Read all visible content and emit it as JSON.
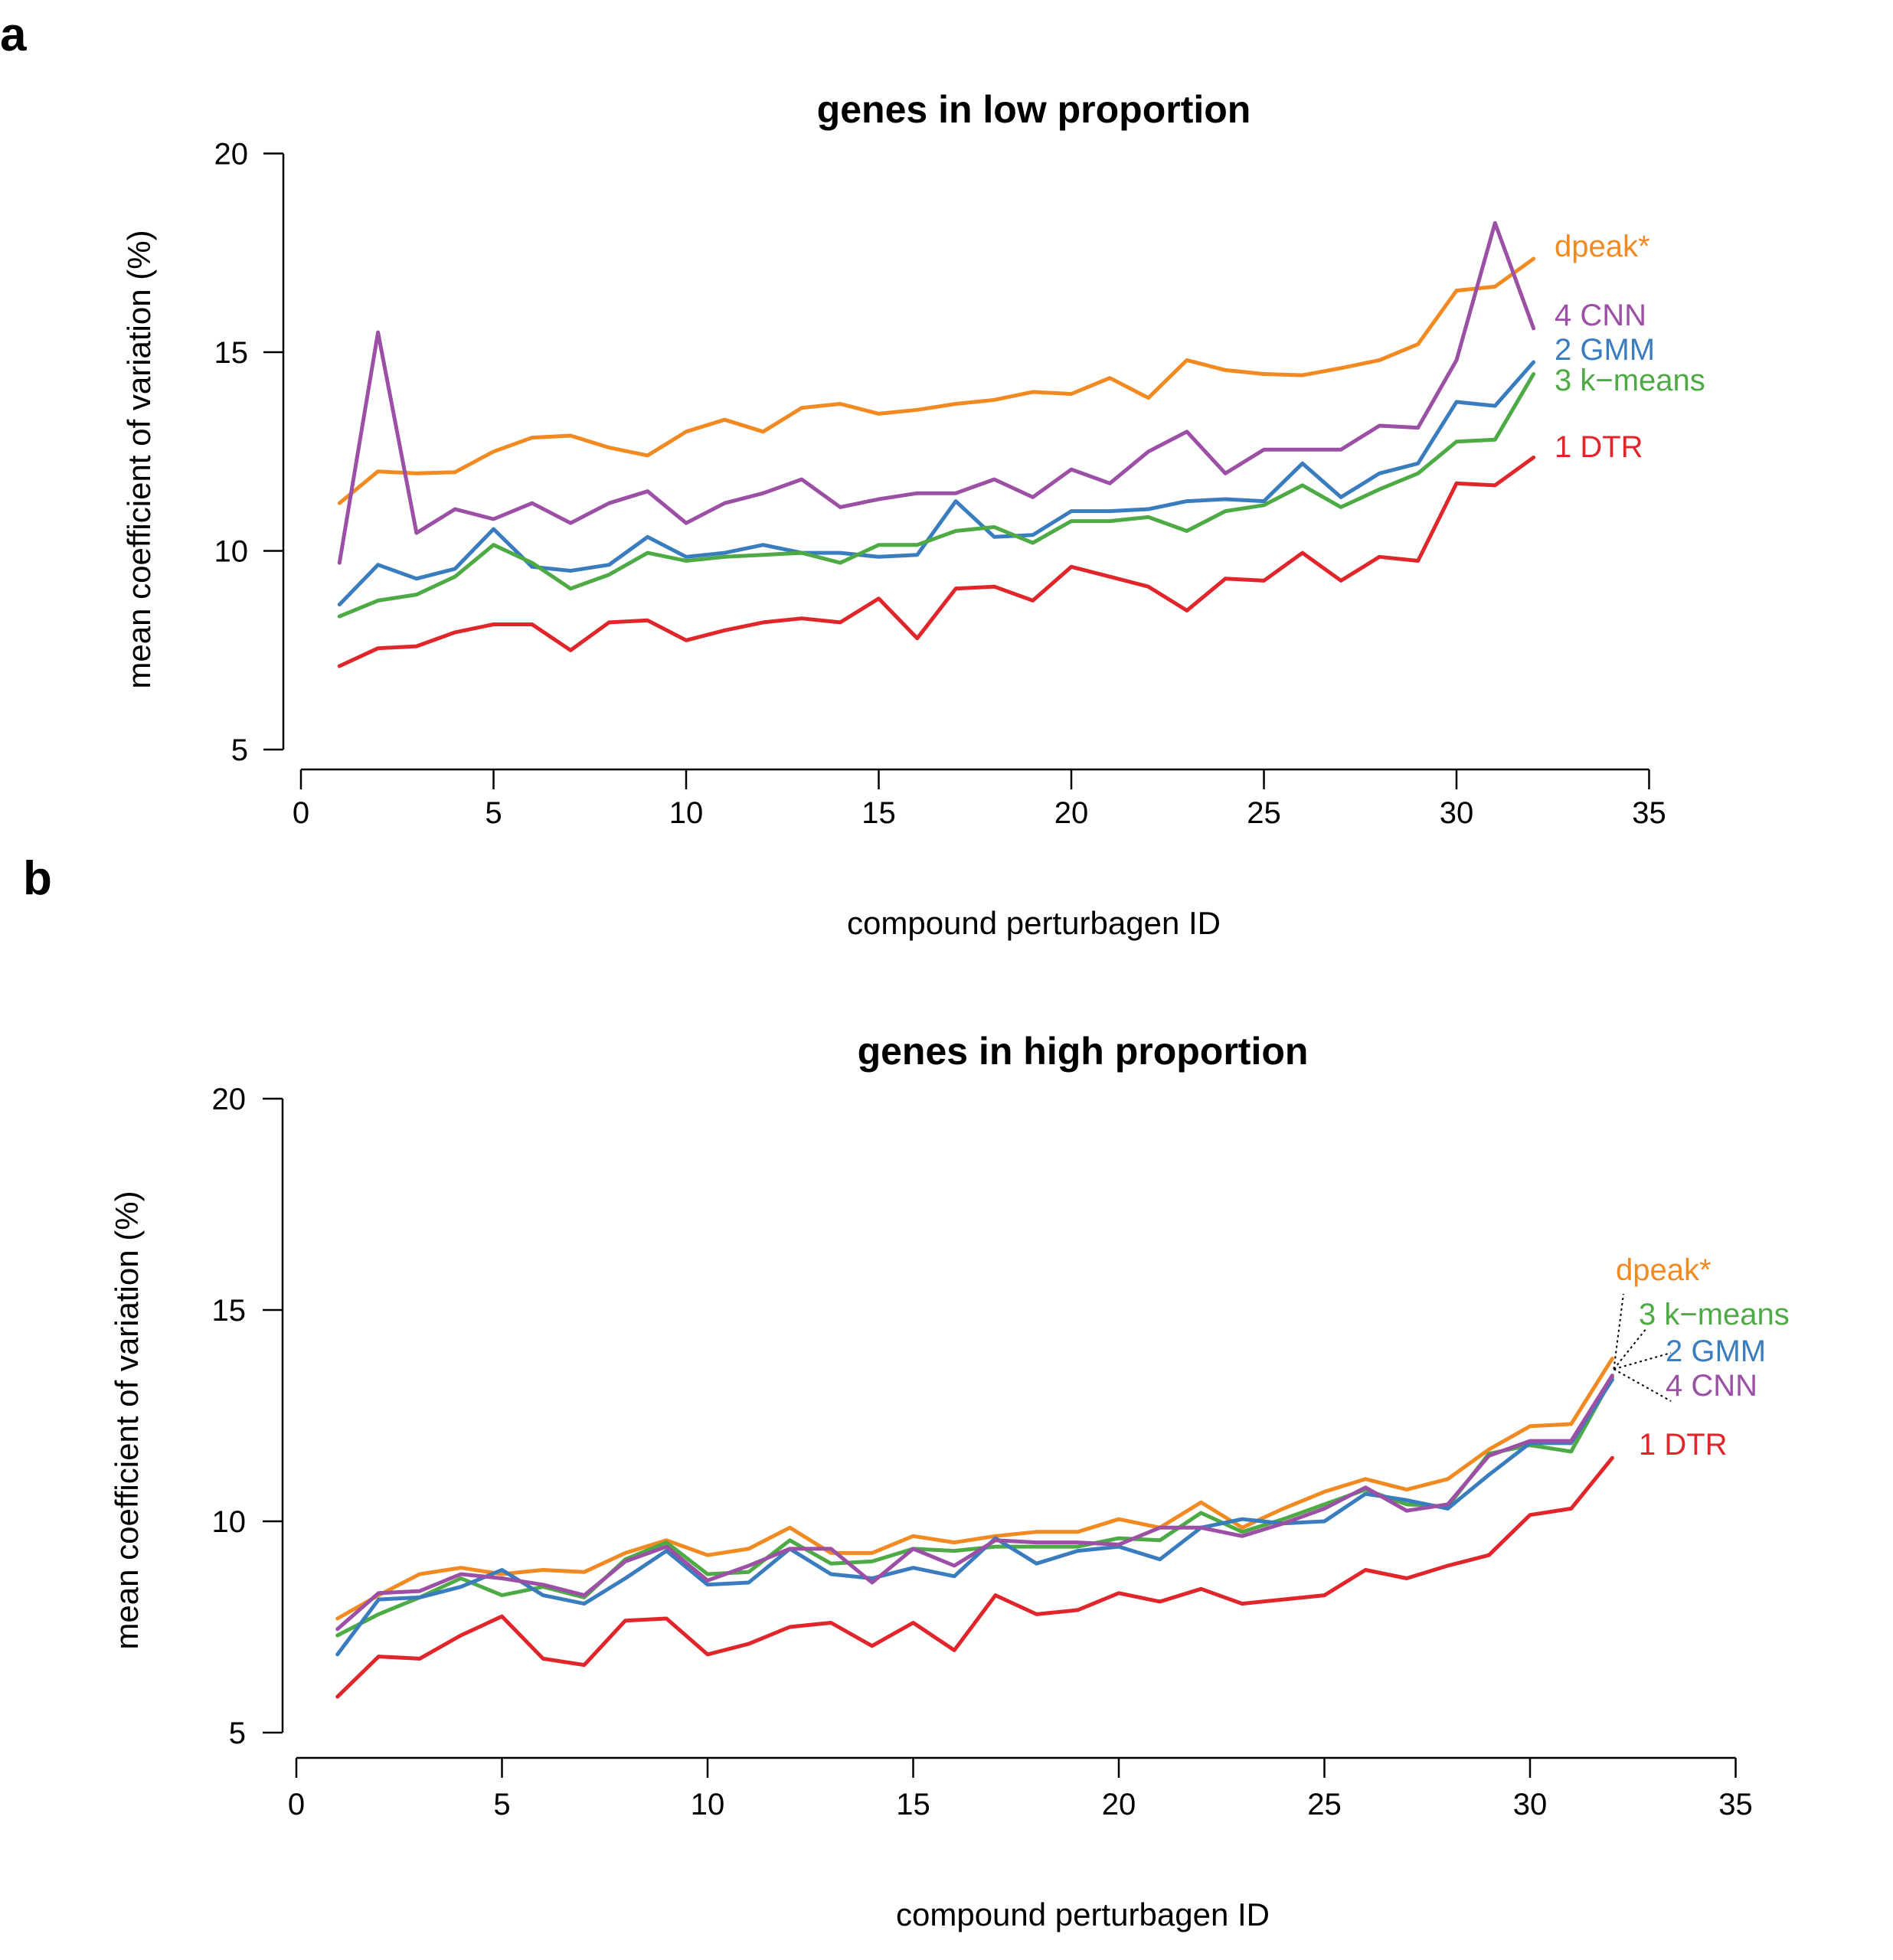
{
  "panel_letters": [
    "a",
    "b"
  ],
  "colors": {
    "orange": "#F28A22",
    "purple": "#9B4FA5",
    "blue": "#3A7DBE",
    "green": "#4DAA45",
    "red": "#E0262B"
  },
  "chart_data": [
    {
      "type": "line",
      "title": "genes in low proportion",
      "xlabel": "compound perturbagen ID",
      "ylabel": "mean coefficient of variation (%)",
      "xlim": [
        0,
        38
      ],
      "ylim": [
        5,
        20
      ],
      "xticks": [
        0,
        5,
        10,
        15,
        20,
        25,
        30,
        35
      ],
      "yticks": [
        5,
        10,
        15,
        20
      ],
      "x": [
        1,
        2,
        3,
        4,
        5,
        6,
        7,
        8,
        9,
        10,
        11,
        12,
        13,
        14,
        15,
        16,
        17,
        18,
        19,
        20,
        21,
        22,
        23,
        24,
        25,
        26,
        27,
        28,
        29,
        30,
        31,
        32
      ],
      "series": [
        {
          "name": "dpeak*",
          "color": "#F28A22",
          "values": [
            11.2,
            12.0,
            11.95,
            11.98,
            12.5,
            12.85,
            12.9,
            12.6,
            12.4,
            13.0,
            13.3,
            13.0,
            13.6,
            13.7,
            13.45,
            13.55,
            13.7,
            13.8,
            14.0,
            13.95,
            14.35,
            13.85,
            14.8,
            14.55,
            14.45,
            14.42,
            14.6,
            14.8,
            15.2,
            16.55,
            16.65,
            17.35
          ]
        },
        {
          "name": "4 CNN",
          "color": "#9B4FA5",
          "values": [
            9.7,
            15.5,
            10.45,
            11.05,
            10.8,
            11.2,
            10.7,
            11.2,
            11.5,
            10.7,
            11.2,
            11.45,
            11.8,
            11.1,
            11.3,
            11.45,
            11.45,
            11.8,
            11.35,
            12.05,
            11.7,
            12.5,
            13.0,
            11.95,
            12.55,
            12.55,
            12.55,
            13.15,
            13.1,
            14.8,
            18.25,
            15.6
          ]
        },
        {
          "name": "2 GMM",
          "color": "#3A7DBE",
          "values": [
            8.65,
            9.65,
            9.3,
            9.55,
            10.55,
            9.6,
            9.5,
            9.65,
            10.35,
            9.85,
            9.95,
            10.15,
            9.95,
            9.95,
            9.85,
            9.9,
            11.25,
            10.35,
            10.4,
            11.0,
            11.0,
            11.05,
            11.25,
            11.3,
            11.25,
            12.2,
            11.35,
            11.95,
            12.2,
            13.75,
            13.65,
            14.75
          ]
        },
        {
          "name": "3 k−means",
          "color": "#4DAA45",
          "values": [
            8.35,
            8.75,
            8.9,
            9.35,
            10.15,
            9.7,
            9.05,
            9.4,
            9.95,
            9.75,
            9.85,
            9.9,
            9.95,
            9.7,
            10.15,
            10.15,
            10.5,
            10.6,
            10.2,
            10.75,
            10.75,
            10.85,
            10.5,
            11.0,
            11.15,
            11.65,
            11.1,
            11.55,
            11.95,
            12.75,
            12.8,
            14.45
          ]
        },
        {
          "name": "1 DTR",
          "color": "#E0262B",
          "values": [
            7.1,
            7.55,
            7.6,
            7.95,
            8.15,
            8.15,
            7.5,
            8.2,
            8.25,
            7.75,
            8.0,
            8.2,
            8.3,
            8.2,
            8.8,
            7.8,
            9.05,
            9.1,
            8.75,
            9.6,
            9.35,
            9.1,
            8.5,
            9.3,
            9.25,
            9.95,
            9.25,
            9.85,
            9.75,
            11.7,
            11.65,
            12.35
          ]
        }
      ]
    },
    {
      "type": "line",
      "title": "genes in high proportion",
      "xlabel": "compound perturbagen ID",
      "ylabel": "mean coefficient of variation (%)",
      "xlim": [
        0,
        38
      ],
      "ylim": [
        5,
        20
      ],
      "xticks": [
        0,
        5,
        10,
        15,
        20,
        25,
        30,
        35
      ],
      "yticks": [
        5,
        10,
        15,
        20
      ],
      "x": [
        1,
        2,
        3,
        4,
        5,
        6,
        7,
        8,
        9,
        10,
        11,
        12,
        13,
        14,
        15,
        16,
        17,
        18,
        19,
        20,
        21,
        22,
        23,
        24,
        25,
        26,
        27,
        28,
        29,
        30,
        31,
        32
      ],
      "series": [
        {
          "name": "dpeak*",
          "color": "#F28A22",
          "values": [
            7.7,
            8.25,
            8.75,
            8.9,
            8.75,
            8.85,
            8.8,
            9.25,
            9.55,
            9.2,
            9.35,
            9.85,
            9.25,
            9.25,
            9.65,
            9.5,
            9.65,
            9.75,
            9.75,
            10.05,
            9.85,
            10.45,
            9.85,
            10.3,
            10.7,
            11.0,
            10.75,
            11.0,
            11.7,
            12.25,
            12.3,
            13.85
          ]
        },
        {
          "name": "3 k−means",
          "color": "#4DAA45",
          "values": [
            7.3,
            7.8,
            8.2,
            8.65,
            8.25,
            8.45,
            8.2,
            9.1,
            9.5,
            8.75,
            8.8,
            9.55,
            9.0,
            9.05,
            9.35,
            9.3,
            9.4,
            9.4,
            9.4,
            9.6,
            9.55,
            10.2,
            9.75,
            10.05,
            10.4,
            10.75,
            10.4,
            10.35,
            11.6,
            11.8,
            11.65,
            13.4
          ]
        },
        {
          "name": "2 GMM",
          "color": "#3A7DBE",
          "values": [
            6.85,
            8.15,
            8.2,
            8.45,
            8.85,
            8.25,
            8.05,
            8.65,
            9.3,
            8.5,
            8.55,
            9.35,
            8.75,
            8.65,
            8.9,
            8.7,
            9.6,
            9.0,
            9.3,
            9.4,
            9.1,
            9.85,
            10.05,
            9.95,
            10.0,
            10.65,
            10.5,
            10.3,
            11.1,
            11.85,
            11.85,
            13.35
          ]
        },
        {
          "name": "4 CNN",
          "color": "#9B4FA5",
          "values": [
            7.45,
            8.3,
            8.35,
            8.75,
            8.65,
            8.5,
            8.25,
            9.05,
            9.4,
            8.6,
            8.95,
            9.35,
            9.35,
            8.55,
            9.35,
            8.95,
            9.55,
            9.5,
            9.5,
            9.45,
            9.85,
            9.85,
            9.65,
            9.95,
            10.3,
            10.8,
            10.25,
            10.4,
            11.55,
            11.9,
            11.9,
            13.45
          ]
        },
        {
          "name": "1 DTR",
          "color": "#E0262B",
          "values": [
            5.85,
            6.8,
            6.75,
            7.3,
            7.75,
            6.75,
            6.6,
            7.65,
            7.7,
            6.85,
            7.1,
            7.5,
            7.6,
            7.05,
            7.6,
            6.95,
            8.25,
            7.8,
            7.9,
            8.3,
            8.1,
            8.4,
            8.05,
            8.15,
            8.25,
            8.85,
            8.65,
            8.95,
            9.2,
            10.15,
            10.3,
            11.5
          ]
        }
      ]
    }
  ]
}
